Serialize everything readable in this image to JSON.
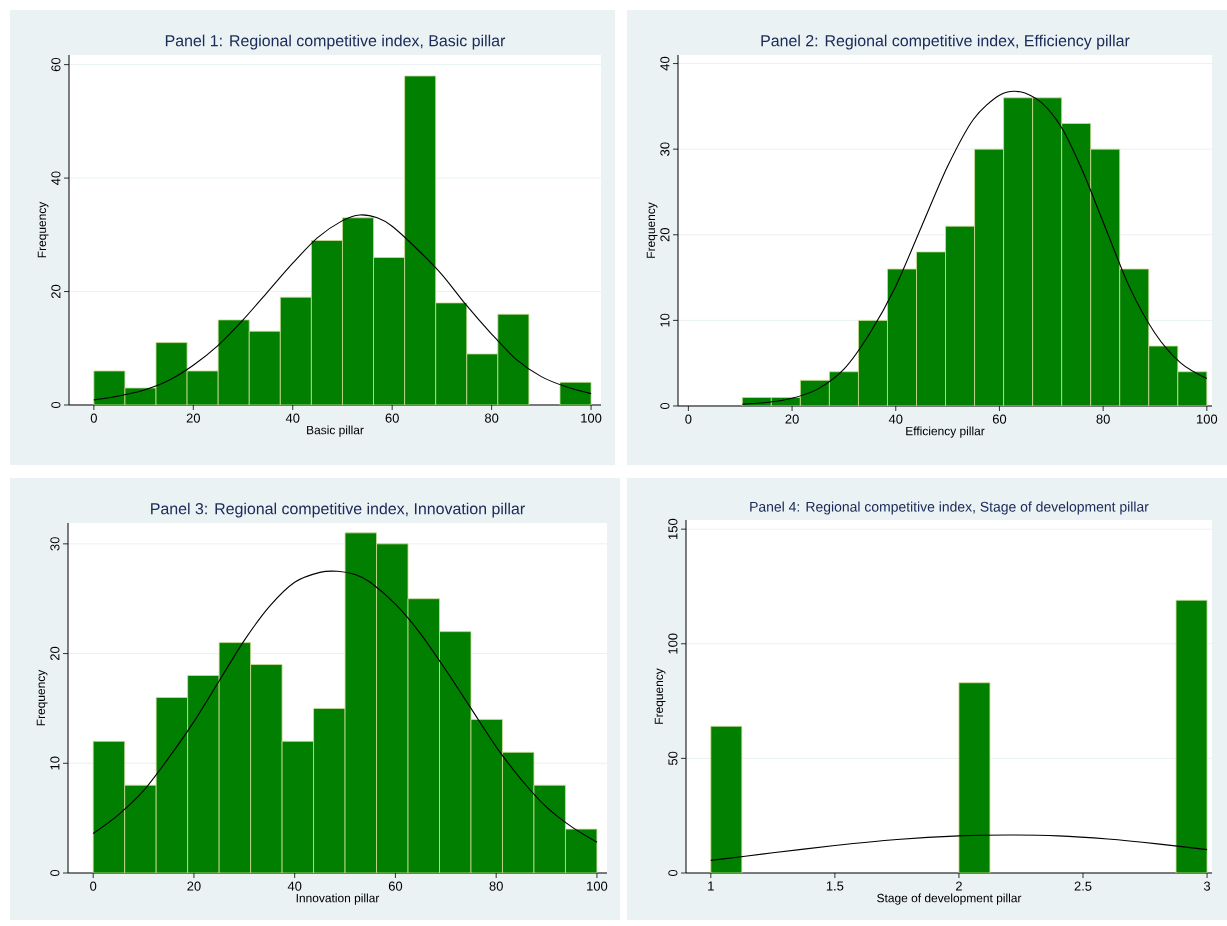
{
  "chart_data": [
    {
      "type": "histogram",
      "title": "Panel 1: Regional competitive index, Basic pillar",
      "xlabel": "Basic pillar",
      "ylabel": "Frequency",
      "xlim": [
        -5,
        102
      ],
      "ylim": [
        0,
        61.7
      ],
      "xticks": [
        0,
        20,
        40,
        60,
        80,
        100
      ],
      "yticks": [
        0,
        20,
        40,
        60
      ],
      "grid": "y",
      "series": [
        {
          "color": "#007f00",
          "bins": [
            0,
            6.25,
            12.5,
            18.75,
            25,
            31.25,
            37.5,
            43.75,
            50,
            56.25,
            62.5,
            68.75,
            75,
            81.25,
            87.5,
            93.75,
            100
          ],
          "values": [
            6,
            3,
            11,
            6,
            15,
            13,
            19,
            29,
            33,
            26,
            58,
            18,
            9,
            16,
            0,
            4
          ]
        },
        {
          "type": "line",
          "color": "#000000",
          "x": [
            0,
            5,
            10,
            15,
            20,
            25,
            30,
            35,
            40,
            45,
            50,
            53.5,
            57,
            60,
            65,
            70,
            75,
            80,
            85,
            90,
            95,
            100
          ],
          "values": [
            0.9,
            1.6,
            2.6,
            4.3,
            7,
            10.5,
            15,
            20,
            25,
            29.5,
            32.5,
            33.5,
            33,
            31.5,
            27.5,
            23,
            17.5,
            12.5,
            8,
            5,
            3.2,
            2
          ]
        }
      ]
    },
    {
      "type": "histogram",
      "title": "Panel 2: Regional competitive index, Efficiency pillar",
      "xlabel": "Efficiency pillar",
      "ylabel": "Frequency",
      "xlim": [
        -2,
        101
      ],
      "ylim": [
        0,
        41
      ],
      "xticks": [
        0,
        20,
        40,
        60,
        80,
        100
      ],
      "yticks": [
        0,
        10,
        20,
        30,
        40
      ],
      "grid": "y",
      "series": [
        {
          "color": "#007f00",
          "bins": [
            10.4,
            16,
            21.6,
            27.2,
            32.8,
            38.4,
            44,
            49.6,
            55.2,
            60.8,
            66.4,
            72,
            77.6,
            83.2,
            88.8,
            94.4,
            100
          ],
          "values": [
            1,
            1,
            3,
            4,
            10,
            16,
            18,
            21,
            30,
            36,
            36,
            33,
            30,
            16,
            7,
            4
          ]
        },
        {
          "type": "line",
          "color": "#000000",
          "x": [
            10.4,
            15,
            20,
            25,
            30,
            35,
            40,
            45,
            50,
            55,
            60,
            64,
            68,
            72,
            76,
            80,
            85,
            90,
            95,
            100
          ],
          "values": [
            0.2,
            0.4,
            0.9,
            2,
            4.3,
            8.5,
            14,
            21,
            28,
            33.5,
            36.3,
            36.7,
            35.5,
            32.5,
            27.5,
            21.5,
            14,
            8.5,
            5,
            3.2
          ]
        }
      ]
    },
    {
      "type": "histogram",
      "title": "Panel 3: Regional competitive index, Innovation pillar",
      "xlabel": "Innovation pillar",
      "ylabel": "Frequency",
      "xlim": [
        -5,
        102
      ],
      "ylim": [
        0,
        31.9
      ],
      "xticks": [
        0,
        20,
        40,
        60,
        80,
        100
      ],
      "yticks": [
        0,
        10,
        20,
        30
      ],
      "grid": "y",
      "series": [
        {
          "color": "#007f00",
          "bins": [
            0,
            6.25,
            12.5,
            18.75,
            25,
            31.25,
            37.5,
            43.75,
            50,
            56.25,
            62.5,
            68.75,
            75,
            81.25,
            87.5,
            93.75,
            100
          ],
          "values": [
            12,
            8,
            16,
            18,
            21,
            19,
            12,
            15,
            31,
            30,
            25,
            22,
            14,
            11,
            8,
            4
          ]
        },
        {
          "type": "line",
          "color": "#000000",
          "x": [
            0,
            5,
            10,
            15,
            20,
            25,
            30,
            35,
            40,
            45,
            48.5,
            52,
            55,
            60,
            65,
            70,
            75,
            80,
            85,
            90,
            95,
            100
          ],
          "values": [
            3.6,
            5.3,
            7.5,
            10.5,
            13.8,
            17.5,
            21.2,
            24.3,
            26.5,
            27.4,
            27.5,
            27.2,
            26.5,
            24.5,
            21.8,
            18.5,
            15,
            11.5,
            8.5,
            6,
            4.2,
            2.8
          ]
        }
      ]
    },
    {
      "type": "histogram",
      "title": "Panel 4: Regional competitive index, Stage of development pillar",
      "xlabel": "Stage of development pillar",
      "ylabel": "Frequency",
      "xlim": [
        0.9,
        3.02
      ],
      "ylim": [
        0,
        154
      ],
      "xticks": [
        1,
        1.5,
        2,
        2.5,
        3
      ],
      "yticks": [
        0,
        50,
        100,
        150
      ],
      "grid": "y",
      "series": [
        {
          "color": "#007f00",
          "bins": [
            1,
            1.125,
            1.25,
            1.375,
            1.5,
            1.625,
            1.75,
            1.875,
            2,
            2.125,
            2.25,
            2.375,
            2.5,
            2.625,
            2.75,
            2.875,
            3
          ],
          "values": [
            64,
            0,
            0,
            0,
            0,
            0,
            0,
            0,
            83,
            0,
            0,
            0,
            0,
            0,
            0,
            119
          ]
        },
        {
          "type": "line",
          "color": "#000000",
          "x": [
            1,
            1.25,
            1.5,
            1.75,
            2,
            2.2,
            2.4,
            2.6,
            2.8,
            3
          ],
          "values": [
            5.5,
            8.8,
            12,
            14.6,
            16.2,
            16.6,
            16.2,
            14.8,
            12.7,
            10.2
          ]
        }
      ]
    }
  ]
}
